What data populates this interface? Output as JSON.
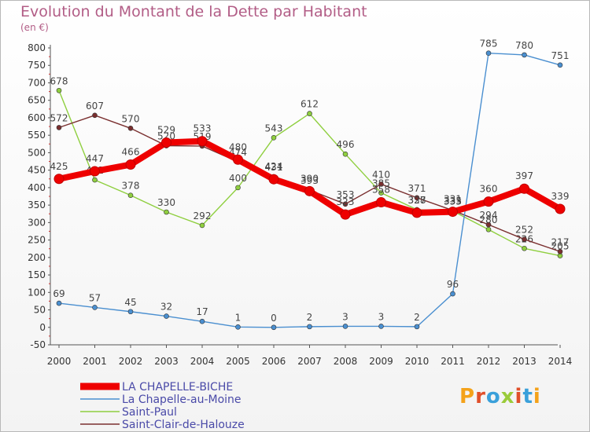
{
  "title": "Evolution du Montant de la Dette par Habitant",
  "unit": "(en €)",
  "logo": {
    "text": "Proxiti",
    "colors": [
      "#f4a21a",
      "#e04f2a",
      "#3aa0da",
      "#9acb3a",
      "#e04f2a",
      "#3aa0da",
      "#f4a21a"
    ]
  },
  "chart_data": {
    "type": "line",
    "x": [
      2000,
      2001,
      2002,
      2003,
      2004,
      2005,
      2006,
      2007,
      2008,
      2009,
      2010,
      2011,
      2012,
      2013,
      2014
    ],
    "ylim": [
      -50,
      800
    ],
    "yticks": [
      -50,
      0,
      50,
      100,
      150,
      200,
      250,
      300,
      350,
      400,
      450,
      500,
      550,
      600,
      650,
      700,
      750,
      800
    ],
    "grid": false,
    "legend": "bottom-left",
    "series": [
      {
        "name": "Saint-Paul",
        "color": "#8fcf3f",
        "values": [
          678,
          422,
          378,
          330,
          292,
          400,
          543,
          612,
          496,
          385,
          337,
          333,
          280,
          226,
          205
        ]
      },
      {
        "name": "Saint-Clair-de-Halouze",
        "color": "#7a2f2f",
        "values": [
          572,
          607,
          570,
          520,
          519,
          474,
          431,
          393,
          353,
          410,
          371,
          335,
          294,
          252,
          217
        ]
      },
      {
        "name": "La Chapelle-au-Moine",
        "color": "#4a8fd0",
        "values": [
          69,
          57,
          45,
          32,
          17,
          1,
          0,
          2,
          3,
          3,
          2,
          96,
          785,
          780,
          751
        ]
      },
      {
        "name": "LA CHAPELLE-BICHE",
        "color": "#ee0000",
        "values": [
          425,
          447,
          466,
          529,
          533,
          480,
          424,
          390,
          323,
          358,
          328,
          331,
          360,
          397,
          339
        ]
      }
    ],
    "legend_order": [
      "LA CHAPELLE-BICHE",
      "La Chapelle-au-Moine",
      "Saint-Paul",
      "Saint-Clair-de-Halouze"
    ]
  }
}
